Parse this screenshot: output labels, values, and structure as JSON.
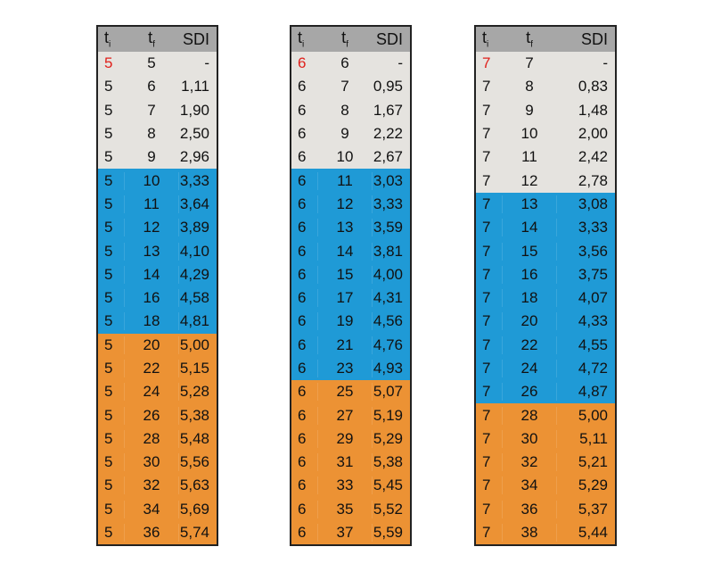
{
  "headers": {
    "ti": "t",
    "ti_sub": "i",
    "tf": "t",
    "tf_sub": "f",
    "sdi": "SDI"
  },
  "colors": {
    "header": "#a7a7a7",
    "gray": "#e5e3df",
    "blue": "#1f9ad6",
    "orange": "#ec9234",
    "highlight_text": "#e0201b"
  },
  "tables": [
    {
      "rows": [
        [
          "5",
          "5",
          "-",
          "gray"
        ],
        [
          "5",
          "6",
          "1,11",
          "gray"
        ],
        [
          "5",
          "7",
          "1,90",
          "gray"
        ],
        [
          "5",
          "8",
          "2,50",
          "gray"
        ],
        [
          "5",
          "9",
          "2,96",
          "gray"
        ],
        [
          "5",
          "10",
          "3,33",
          "blue"
        ],
        [
          "5",
          "11",
          "3,64",
          "blue"
        ],
        [
          "5",
          "12",
          "3,89",
          "blue"
        ],
        [
          "5",
          "13",
          "4,10",
          "blue"
        ],
        [
          "5",
          "14",
          "4,29",
          "blue"
        ],
        [
          "5",
          "16",
          "4,58",
          "blue"
        ],
        [
          "5",
          "18",
          "4,81",
          "blue"
        ],
        [
          "5",
          "20",
          "5,00",
          "orange"
        ],
        [
          "5",
          "22",
          "5,15",
          "orange"
        ],
        [
          "5",
          "24",
          "5,28",
          "orange"
        ],
        [
          "5",
          "26",
          "5,38",
          "orange"
        ],
        [
          "5",
          "28",
          "5,48",
          "orange"
        ],
        [
          "5",
          "30",
          "5,56",
          "orange"
        ],
        [
          "5",
          "32",
          "5,63",
          "orange"
        ],
        [
          "5",
          "34",
          "5,69",
          "orange"
        ],
        [
          "5",
          "36",
          "5,74",
          "orange"
        ]
      ]
    },
    {
      "rows": [
        [
          "6",
          "6",
          "-",
          "gray"
        ],
        [
          "6",
          "7",
          "0,95",
          "gray"
        ],
        [
          "6",
          "8",
          "1,67",
          "gray"
        ],
        [
          "6",
          "9",
          "2,22",
          "gray"
        ],
        [
          "6",
          "10",
          "2,67",
          "gray"
        ],
        [
          "6",
          "11",
          "3,03",
          "blue"
        ],
        [
          "6",
          "12",
          "3,33",
          "blue"
        ],
        [
          "6",
          "13",
          "3,59",
          "blue"
        ],
        [
          "6",
          "14",
          "3,81",
          "blue"
        ],
        [
          "6",
          "15",
          "4,00",
          "blue"
        ],
        [
          "6",
          "17",
          "4,31",
          "blue"
        ],
        [
          "6",
          "19",
          "4,56",
          "blue"
        ],
        [
          "6",
          "21",
          "4,76",
          "blue"
        ],
        [
          "6",
          "23",
          "4,93",
          "blue"
        ],
        [
          "6",
          "25",
          "5,07",
          "orange"
        ],
        [
          "6",
          "27",
          "5,19",
          "orange"
        ],
        [
          "6",
          "29",
          "5,29",
          "orange"
        ],
        [
          "6",
          "31",
          "5,38",
          "orange"
        ],
        [
          "6",
          "33",
          "5,45",
          "orange"
        ],
        [
          "6",
          "35",
          "5,52",
          "orange"
        ],
        [
          "6",
          "37",
          "5,59",
          "orange"
        ]
      ]
    },
    {
      "rows": [
        [
          "7",
          "7",
          "-",
          "gray"
        ],
        [
          "7",
          "8",
          "0,83",
          "gray"
        ],
        [
          "7",
          "9",
          "1,48",
          "gray"
        ],
        [
          "7",
          "10",
          "2,00",
          "gray"
        ],
        [
          "7",
          "11",
          "2,42",
          "gray"
        ],
        [
          "7",
          "12",
          "2,78",
          "gray"
        ],
        [
          "7",
          "13",
          "3,08",
          "blue"
        ],
        [
          "7",
          "14",
          "3,33",
          "blue"
        ],
        [
          "7",
          "15",
          "3,56",
          "blue"
        ],
        [
          "7",
          "16",
          "3,75",
          "blue"
        ],
        [
          "7",
          "18",
          "4,07",
          "blue"
        ],
        [
          "7",
          "20",
          "4,33",
          "blue"
        ],
        [
          "7",
          "22",
          "4,55",
          "blue"
        ],
        [
          "7",
          "24",
          "4,72",
          "blue"
        ],
        [
          "7",
          "26",
          "4,87",
          "blue"
        ],
        [
          "7",
          "28",
          "5,00",
          "orange"
        ],
        [
          "7",
          "30",
          "5,11",
          "orange"
        ],
        [
          "7",
          "32",
          "5,21",
          "orange"
        ],
        [
          "7",
          "34",
          "5,29",
          "orange"
        ],
        [
          "7",
          "36",
          "5,37",
          "orange"
        ],
        [
          "7",
          "38",
          "5,44",
          "orange"
        ]
      ]
    }
  ]
}
